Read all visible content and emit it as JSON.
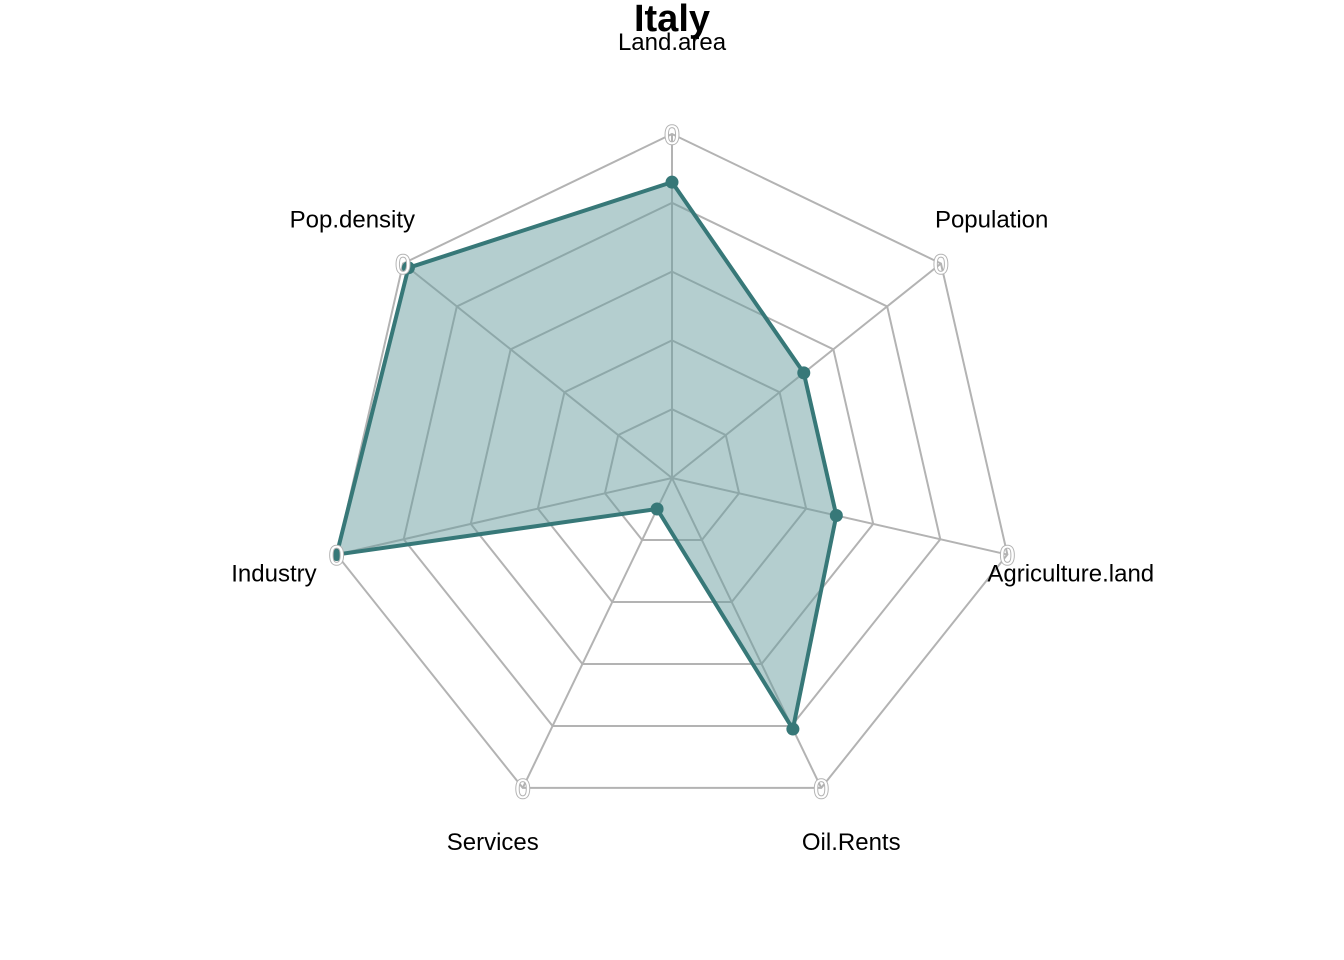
{
  "chart_data": {
    "type": "radar",
    "title": "Italy",
    "axes": [
      "Land.area",
      "Population",
      "Agriculture.land",
      "Oil.Rents",
      "Services",
      "Industry",
      "Pop.density"
    ],
    "series": [
      {
        "values": [
          0.86,
          0.49,
          0.49,
          0.81,
          0.1,
          1.0,
          0.98
        ]
      }
    ],
    "range": [
      0,
      1
    ],
    "grid_levels": 5,
    "outer_axis_labels": [
      "0",
      "0",
      "0",
      "0",
      "0",
      "0",
      "0"
    ],
    "grid": true,
    "legend": "none",
    "colors": {
      "fill": "#6a9ea0",
      "line": "#377878",
      "grid": "#b3b3b3"
    }
  }
}
